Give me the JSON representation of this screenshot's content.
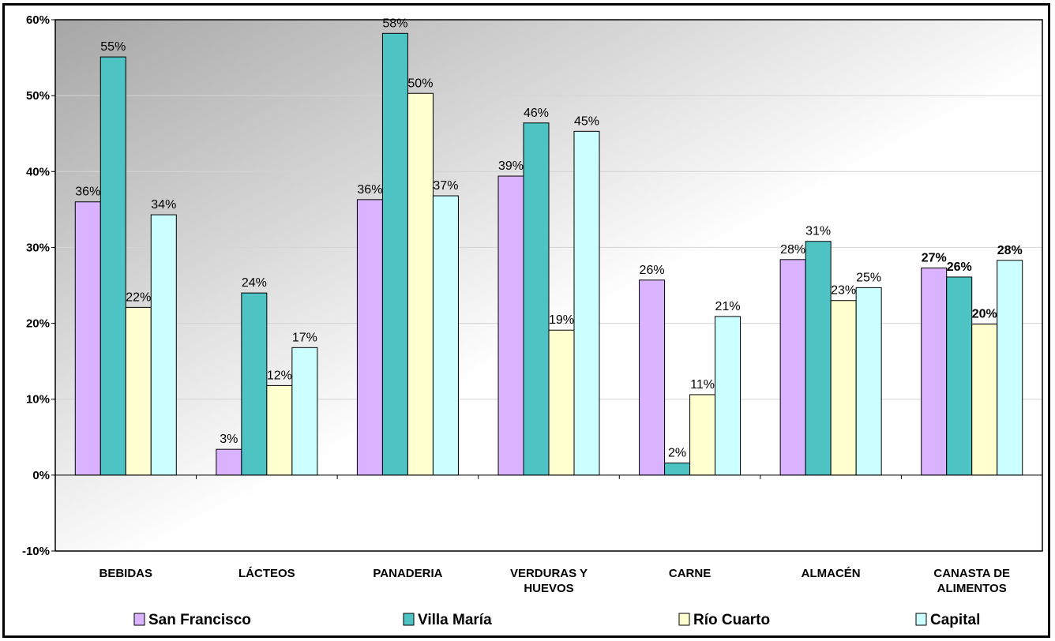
{
  "chart_data": {
    "type": "bar",
    "title": "",
    "xlabel": "",
    "ylabel": "",
    "ylim": [
      -10,
      60
    ],
    "yticks": [
      "60%",
      "50%",
      "40%",
      "30%",
      "20%",
      "10%",
      "0%",
      "-10%"
    ],
    "ytick_values": [
      60,
      50,
      40,
      30,
      20,
      10,
      0,
      -10
    ],
    "grid": true,
    "legend_position": "bottom",
    "categories": [
      [
        "BEBIDAS"
      ],
      [
        "LÁCTEOS"
      ],
      [
        "PANADERIA"
      ],
      [
        "VERDURAS Y",
        "HUEVOS"
      ],
      [
        "CARNE"
      ],
      [
        "ALMACÉN"
      ],
      [
        "CANASTA DE",
        "ALIMENTOS"
      ]
    ],
    "series": [
      {
        "name": "San Francisco",
        "color": "#d9b3ff",
        "values": [
          36.0,
          3.4,
          36.3,
          39.4,
          25.7,
          28.4,
          27.3
        ],
        "labels": [
          "36%",
          "3%",
          "36%",
          "39%",
          "26%",
          "28%",
          "27%"
        ]
      },
      {
        "name": "Villa María",
        "color": "#4ec3c3",
        "values": [
          55.1,
          24.0,
          58.2,
          46.4,
          1.6,
          30.8,
          26.1
        ],
        "labels": [
          "55%",
          "24%",
          "58%",
          "46%",
          "2%",
          "31%",
          "26%"
        ]
      },
      {
        "name": "Río Cuarto",
        "color": "#ffffd0",
        "values": [
          22.1,
          11.8,
          50.3,
          19.1,
          10.6,
          23.0,
          19.9
        ],
        "labels": [
          "22%",
          "12%",
          "50%",
          "19%",
          "11%",
          "23%",
          "20%"
        ]
      },
      {
        "name": "Capital",
        "color": "#ccffff",
        "values": [
          34.3,
          16.8,
          36.8,
          45.3,
          20.9,
          24.7,
          28.3
        ],
        "labels": [
          "34%",
          "17%",
          "37%",
          "45%",
          "21%",
          "25%",
          "28%"
        ]
      }
    ]
  }
}
